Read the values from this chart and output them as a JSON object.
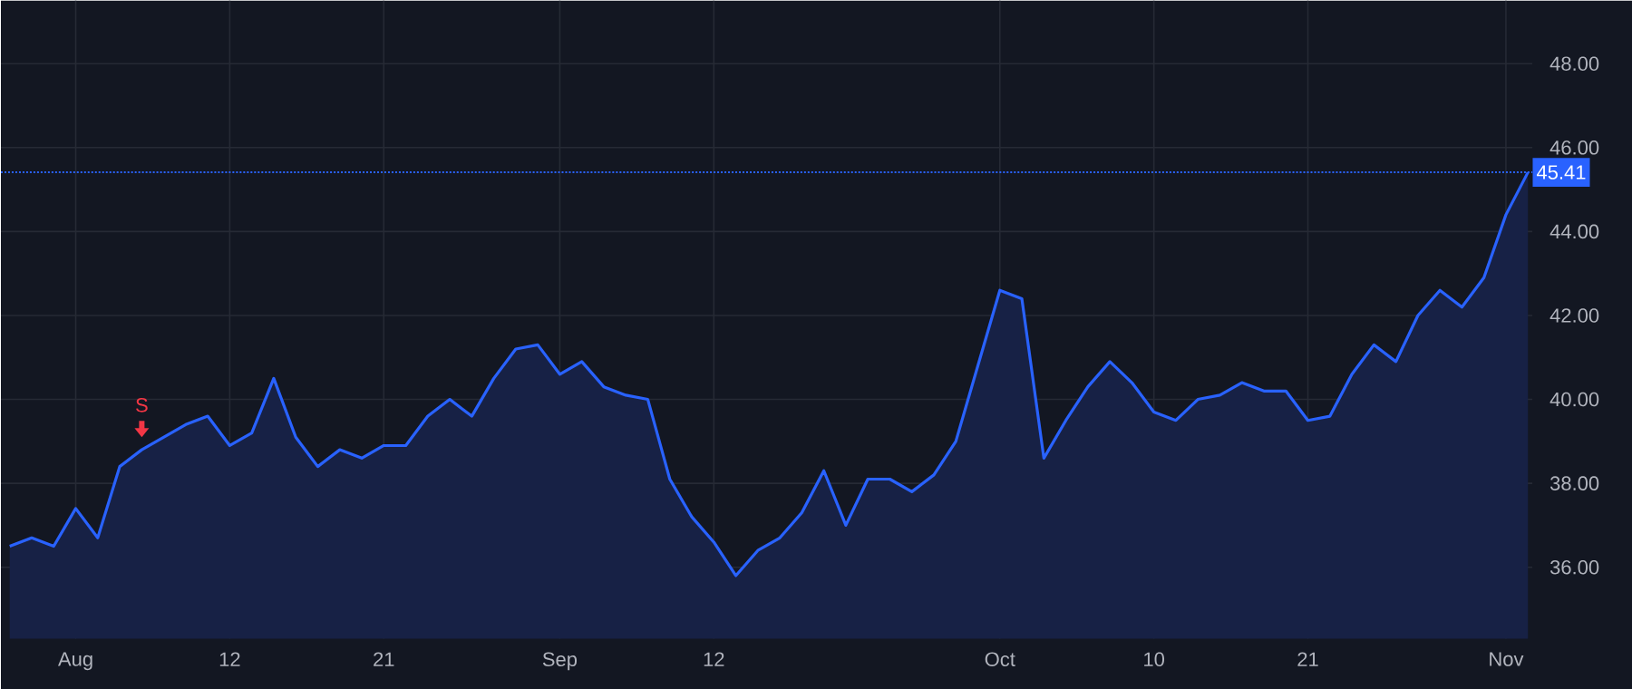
{
  "chart_data": {
    "type": "area",
    "color": "#2962ff",
    "categories": [
      null,
      null,
      null,
      "Aug",
      null,
      null,
      null,
      null,
      null,
      null,
      "12",
      null,
      null,
      null,
      null,
      null,
      null,
      "21",
      null,
      null,
      null,
      null,
      null,
      null,
      null,
      "Sep",
      null,
      null,
      null,
      null,
      null,
      null,
      "12",
      null,
      null,
      null,
      null,
      null,
      null,
      null,
      null,
      null,
      null,
      null,
      null,
      "Oct",
      null,
      null,
      null,
      null,
      null,
      null,
      "10",
      null,
      null,
      null,
      null,
      null,
      null,
      "21",
      null,
      null,
      null,
      null,
      null,
      null,
      null,
      null,
      "Nov",
      null
    ],
    "values": [
      36.5,
      36.7,
      36.5,
      37.4,
      36.7,
      38.4,
      38.8,
      39.1,
      39.4,
      39.6,
      38.9,
      39.2,
      40.5,
      39.1,
      38.4,
      38.8,
      38.6,
      38.9,
      38.9,
      39.6,
      40.0,
      39.6,
      40.5,
      41.2,
      41.3,
      40.6,
      40.9,
      40.3,
      40.1,
      40.0,
      38.1,
      37.2,
      36.6,
      35.8,
      36.4,
      36.7,
      37.3,
      38.3,
      37.0,
      38.1,
      38.1,
      37.8,
      38.2,
      39.0,
      40.8,
      42.6,
      42.4,
      38.6,
      39.5,
      40.3,
      40.9,
      40.4,
      39.7,
      39.5,
      40.0,
      40.1,
      40.4,
      40.2,
      40.2,
      39.5,
      39.6,
      40.6,
      41.3,
      40.9,
      42.0,
      42.6,
      42.2,
      42.9,
      44.4,
      45.41
    ],
    "ylim": [
      34.3,
      49.5
    ],
    "yticks": [
      {
        "value": 36,
        "label": "36.00"
      },
      {
        "value": 38,
        "label": "38.00"
      },
      {
        "value": 40,
        "label": "40.00"
      },
      {
        "value": 42,
        "label": "42.00"
      },
      {
        "value": 44,
        "label": "44.00"
      },
      {
        "value": 46,
        "label": "46.00"
      },
      {
        "value": 48,
        "label": "48.00"
      }
    ],
    "grid": true,
    "marker": "none",
    "line_style": "solid",
    "ref_lines": [
      {
        "axis": "y",
        "value": 45.41,
        "label": "45.41",
        "color": "#2962ff",
        "line_style": "dotted"
      }
    ],
    "annotations": [
      "S"
    ]
  }
}
